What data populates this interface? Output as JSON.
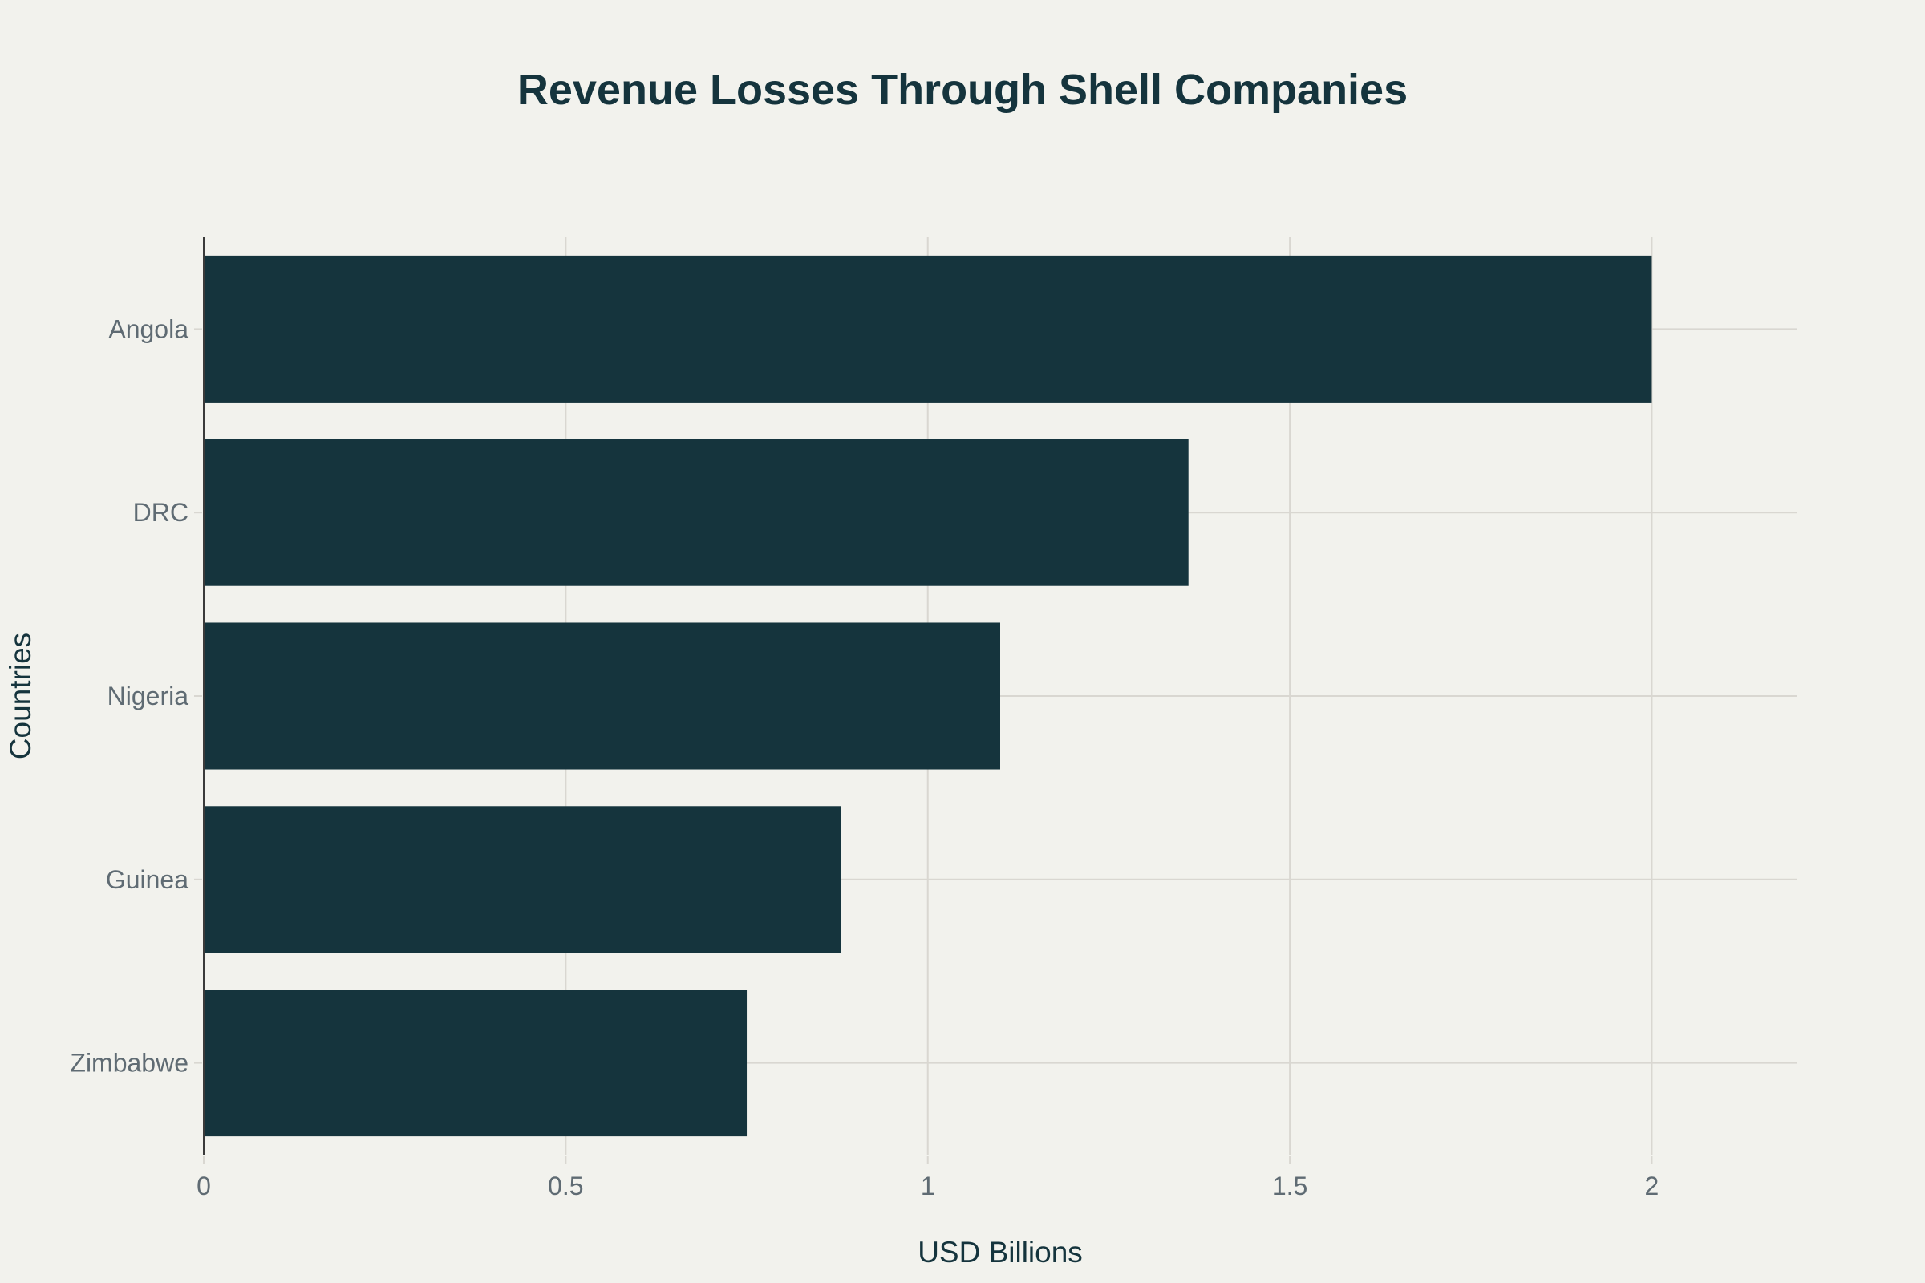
{
  "chart_data": {
    "type": "bar",
    "orientation": "horizontal",
    "title": "Revenue Losses Through Shell Companies",
    "xlabel": "USD Billions",
    "ylabel": "Countries",
    "categories": [
      "Angola",
      "DRC",
      "Nigeria",
      "Guinea",
      "Zimbabwe"
    ],
    "values": [
      2.0,
      1.36,
      1.1,
      0.88,
      0.75
    ],
    "xlim": [
      0,
      2.2
    ],
    "xticks": [
      0,
      0.5,
      1,
      1.5,
      2
    ],
    "xtick_labels": [
      "0",
      "0.5",
      "1",
      "1.5",
      "2"
    ],
    "grid": true,
    "legend": "none",
    "colors": {
      "bar": "#15343d",
      "background": "#f2f2ed",
      "grid": "#d9d7d1",
      "tick_text": "#5f6b73",
      "title_text": "#15343d"
    }
  }
}
